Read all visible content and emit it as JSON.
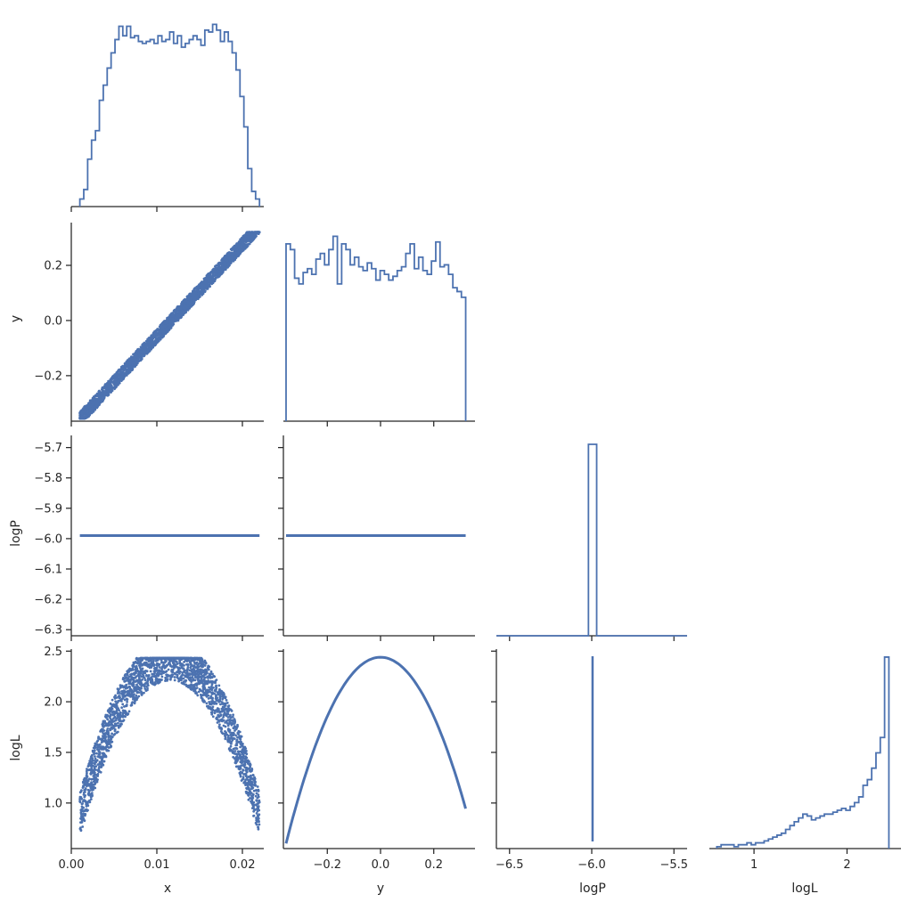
{
  "figure": {
    "type": "corner-plot",
    "color": "#4c72b0",
    "variables": [
      "x",
      "y",
      "logP",
      "logL"
    ]
  },
  "chart_data": {
    "type": "scatter",
    "xlabels": [
      "x",
      "y",
      "logP",
      "logL"
    ],
    "ylabels": [
      "",
      "y",
      "logP",
      "logL"
    ],
    "ranges": {
      "x": [
        0.0,
        0.0225
      ],
      "y": [
        -0.365,
        0.355
      ],
      "logP": [
        -6.32,
        -5.66
      ],
      "logL": [
        0.55,
        2.52
      ]
    },
    "ticks": {
      "x": [
        {
          "v": 0.0,
          "label": "0.00"
        },
        {
          "v": 0.01,
          "label": "0.01"
        },
        {
          "v": 0.02,
          "label": "0.02"
        }
      ],
      "y": [
        {
          "v": -0.2,
          "label": "−0.2"
        },
        {
          "v": 0.0,
          "label": "0.0"
        },
        {
          "v": 0.2,
          "label": "0.2"
        }
      ],
      "logP": [
        {
          "v": -5.7,
          "label": "−5.7"
        },
        {
          "v": -5.8,
          "label": "−5.8"
        },
        {
          "v": -5.9,
          "label": "−5.9"
        },
        {
          "v": -6.0,
          "label": "−6.0"
        },
        {
          "v": -6.1,
          "label": "−6.1"
        },
        {
          "v": -6.2,
          "label": "−6.2"
        },
        {
          "v": -6.3,
          "label": "−6.3"
        }
      ],
      "logP_x": [
        {
          "v": -6.5,
          "label": "−6.5"
        },
        {
          "v": -6.0,
          "label": "−6.0"
        },
        {
          "v": -5.5,
          "label": "−5.5"
        }
      ],
      "logL": [
        {
          "v": 1.0,
          "label": "1.0"
        },
        {
          "v": 1.5,
          "label": "1.5"
        },
        {
          "v": 2.0,
          "label": "2.0"
        },
        {
          "v": 2.5,
          "label": "2.5"
        }
      ],
      "logL_x": [
        {
          "v": 1,
          "label": "1"
        },
        {
          "v": 2,
          "label": "2"
        }
      ]
    },
    "logP_value": -5.99,
    "histograms": {
      "x": {
        "range": [
          0.001,
          0.022
        ],
        "rel": [
          0.04,
          0.09,
          0.25,
          0.35,
          0.4,
          0.56,
          0.64,
          0.73,
          0.81,
          0.88,
          0.95,
          0.9,
          0.95,
          0.89,
          0.9,
          0.87,
          0.86,
          0.87,
          0.88,
          0.86,
          0.9,
          0.87,
          0.88,
          0.92,
          0.86,
          0.9,
          0.84,
          0.86,
          0.88,
          0.9,
          0.88,
          0.85,
          0.93,
          0.92,
          0.96,
          0.93,
          0.87,
          0.92,
          0.87,
          0.81,
          0.72,
          0.58,
          0.42,
          0.2,
          0.08,
          0.04
        ]
      },
      "y": {
        "range": [
          -0.355,
          0.32
        ],
        "rel": [
          0.93,
          0.9,
          0.75,
          0.72,
          0.78,
          0.8,
          0.77,
          0.85,
          0.88,
          0.82,
          0.9,
          0.97,
          0.72,
          0.93,
          0.9,
          0.82,
          0.86,
          0.81,
          0.79,
          0.83,
          0.8,
          0.74,
          0.79,
          0.77,
          0.74,
          0.76,
          0.79,
          0.81,
          0.88,
          0.93,
          0.8,
          0.86,
          0.79,
          0.77,
          0.84,
          0.94,
          0.81,
          0.82,
          0.77,
          0.7,
          0.68,
          0.65
        ]
      },
      "logL": {
        "range": [
          0.6,
          2.45
        ],
        "rel": [
          0.01,
          0.02,
          0.02,
          0.02,
          0.01,
          0.02,
          0.02,
          0.03,
          0.02,
          0.03,
          0.03,
          0.04,
          0.05,
          0.06,
          0.07,
          0.08,
          0.1,
          0.12,
          0.14,
          0.16,
          0.18,
          0.17,
          0.15,
          0.16,
          0.17,
          0.18,
          0.18,
          0.19,
          0.2,
          0.21,
          0.2,
          0.22,
          0.24,
          0.27,
          0.33,
          0.36,
          0.42,
          0.5,
          0.58,
          1.0
        ]
      }
    },
    "scatter_models": {
      "x_vs_y": {
        "slope": 33.3,
        "intercept": -0.39,
        "width": 0.053
      },
      "x_vs_logL": {
        "peak": 2.43,
        "center": 0.0115,
        "curv": 14000,
        "width": 0.22
      },
      "y_vs_logL": {
        "peak": 2.44,
        "curv": 14.6
      }
    }
  }
}
